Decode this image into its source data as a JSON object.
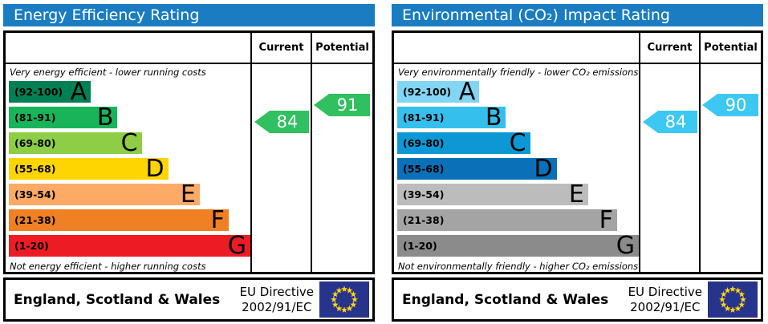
{
  "panels": [
    {
      "title": "Energy Efficiency Rating",
      "columns": {
        "current": "Current",
        "potential": "Potential"
      },
      "top_note": "Very energy efficient - lower running costs",
      "bottom_note": "Not energy efficient - higher running costs",
      "bands": [
        {
          "letter": "A",
          "range": "(92-100)",
          "color": "#008054",
          "width_pct": 34
        },
        {
          "letter": "B",
          "range": "(81-91)",
          "color": "#19b459",
          "width_pct": 45
        },
        {
          "letter": "C",
          "range": "(69-80)",
          "color": "#8dce46",
          "width_pct": 55
        },
        {
          "letter": "D",
          "range": "(55-68)",
          "color": "#ffd500",
          "width_pct": 66
        },
        {
          "letter": "E",
          "range": "(39-54)",
          "color": "#fcaa65",
          "width_pct": 79
        },
        {
          "letter": "F",
          "range": "(21-38)",
          "color": "#ef8023",
          "width_pct": 91
        },
        {
          "letter": "G",
          "range": "(1-20)",
          "color": "#ed1c24",
          "width_pct": 100
        }
      ],
      "current": {
        "value": 84,
        "color": "#31c05f"
      },
      "potential": {
        "value": 91,
        "color": "#31c05f"
      },
      "footer": {
        "region": "England, Scotland & Wales",
        "directive_line1": "EU Directive",
        "directive_line2": "2002/91/EC",
        "flag_icon": "eu-flag-icon",
        "flag_blue": "#27348b",
        "star_yellow": "#ffd617"
      }
    },
    {
      "title": "Environmental (CO₂) Impact Rating",
      "columns": {
        "current": "Current",
        "potential": "Potential"
      },
      "top_note": "Very environmentally friendly - lower CO₂ emissions",
      "bottom_note": "Not environmentally friendly - higher CO₂ emissions",
      "bands": [
        {
          "letter": "A",
          "range": "(92-100)",
          "color": "#82d5f4",
          "width_pct": 34
        },
        {
          "letter": "B",
          "range": "(81-91)",
          "color": "#35bfec",
          "width_pct": 45
        },
        {
          "letter": "C",
          "range": "(69-80)",
          "color": "#0d98d5",
          "width_pct": 55
        },
        {
          "letter": "D",
          "range": "(55-68)",
          "color": "#0a70b7",
          "width_pct": 66
        },
        {
          "letter": "E",
          "range": "(39-54)",
          "color": "#bcbcbc",
          "width_pct": 79
        },
        {
          "letter": "F",
          "range": "(21-38)",
          "color": "#a4a4a4",
          "width_pct": 91
        },
        {
          "letter": "G",
          "range": "(1-20)",
          "color": "#8b8b8b",
          "width_pct": 100
        }
      ],
      "current": {
        "value": 84,
        "color": "#3dc8f3"
      },
      "potential": {
        "value": 90,
        "color": "#3dc8f3"
      },
      "footer": {
        "region": "England, Scotland & Wales",
        "directive_line1": "EU Directive",
        "directive_line2": "2002/91/EC",
        "flag_icon": "eu-flag-icon",
        "flag_blue": "#27348b",
        "star_yellow": "#ffd617"
      }
    }
  ],
  "chart_data": [
    {
      "type": "bar",
      "title": "Energy Efficiency Rating",
      "categories": [
        "A (92-100)",
        "B (81-91)",
        "C (69-80)",
        "D (55-68)",
        "E (39-54)",
        "F (21-38)",
        "G (1-20)"
      ],
      "values": [
        34,
        45,
        55,
        66,
        79,
        91,
        100
      ],
      "value_note": "relative bar widths in % of chart area",
      "series": [
        {
          "name": "Current",
          "values": [
            84
          ],
          "band": "B"
        },
        {
          "name": "Potential",
          "values": [
            91
          ],
          "band": "B"
        }
      ],
      "annotations": [
        "Very energy efficient - lower running costs",
        "Not energy efficient - higher running costs"
      ],
      "legend": [
        "Current",
        "Potential"
      ],
      "footer": "England, Scotland & Wales — EU Directive 2002/91/EC"
    },
    {
      "type": "bar",
      "title": "Environmental (CO₂) Impact Rating",
      "categories": [
        "A (92-100)",
        "B (81-91)",
        "C (69-80)",
        "D (55-68)",
        "E (39-54)",
        "F (21-38)",
        "G (1-20)"
      ],
      "values": [
        34,
        45,
        55,
        66,
        79,
        91,
        100
      ],
      "value_note": "relative bar widths in % of chart area",
      "series": [
        {
          "name": "Current",
          "values": [
            84
          ],
          "band": "B"
        },
        {
          "name": "Potential",
          "values": [
            90
          ],
          "band": "B"
        }
      ],
      "annotations": [
        "Very environmentally friendly - lower CO₂ emissions",
        "Not environmentally friendly - higher CO₂ emissions"
      ],
      "legend": [
        "Current",
        "Potential"
      ],
      "footer": "England, Scotland & Wales — EU Directive 2002/91/EC"
    }
  ]
}
